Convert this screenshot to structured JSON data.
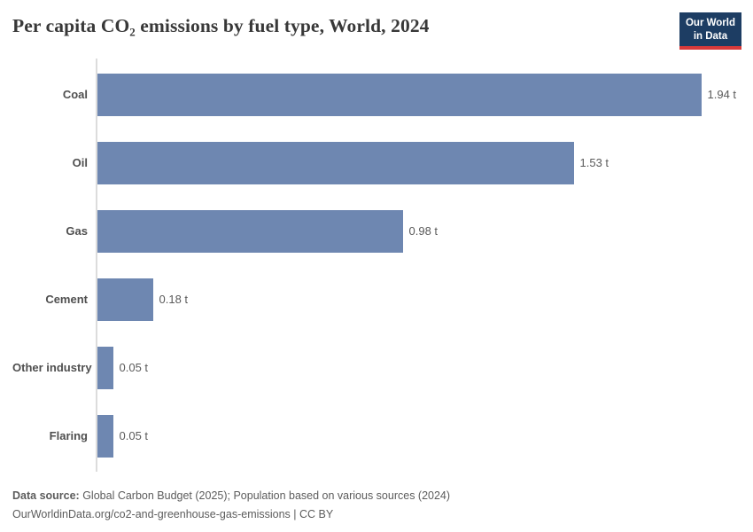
{
  "header": {
    "title": "Per capita CO₂ emissions by fuel type, World, 2024",
    "logo": {
      "line1": "Our World",
      "line2": "in Data"
    }
  },
  "chart_data": {
    "type": "bar",
    "orientation": "horizontal",
    "title": "Per capita CO₂ emissions by fuel type, World, 2024",
    "categories": [
      "Coal",
      "Oil",
      "Gas",
      "Cement",
      "Other industry",
      "Flaring"
    ],
    "values": [
      1.94,
      1.53,
      0.98,
      0.18,
      0.05,
      0.05
    ],
    "value_labels": [
      "1.94 t",
      "1.53 t",
      "0.98 t",
      "0.18 t",
      "0.05 t",
      "0.05 t"
    ],
    "unit": "t",
    "xlim": [
      0,
      1.94
    ],
    "grid": false,
    "legend": false,
    "bar_color": "#6e87b1"
  },
  "footer": {
    "source_label": "Data source:",
    "source_text": " Global Carbon Budget (2025); Population based on various sources (2024)",
    "link_line": "OurWorldinData.org/co2-and-greenhouse-gas-emissions | CC BY"
  },
  "colors": {
    "bar": "#6e87b1",
    "axis_line": "#dcdcdc",
    "logo_background": "#1d3d63",
    "logo_accent": "#d93a3a",
    "title_text": "#383838",
    "label_text": "#4f4f4f",
    "value_text": "#5a5a5a",
    "footer_text": "#5c5c5c"
  }
}
